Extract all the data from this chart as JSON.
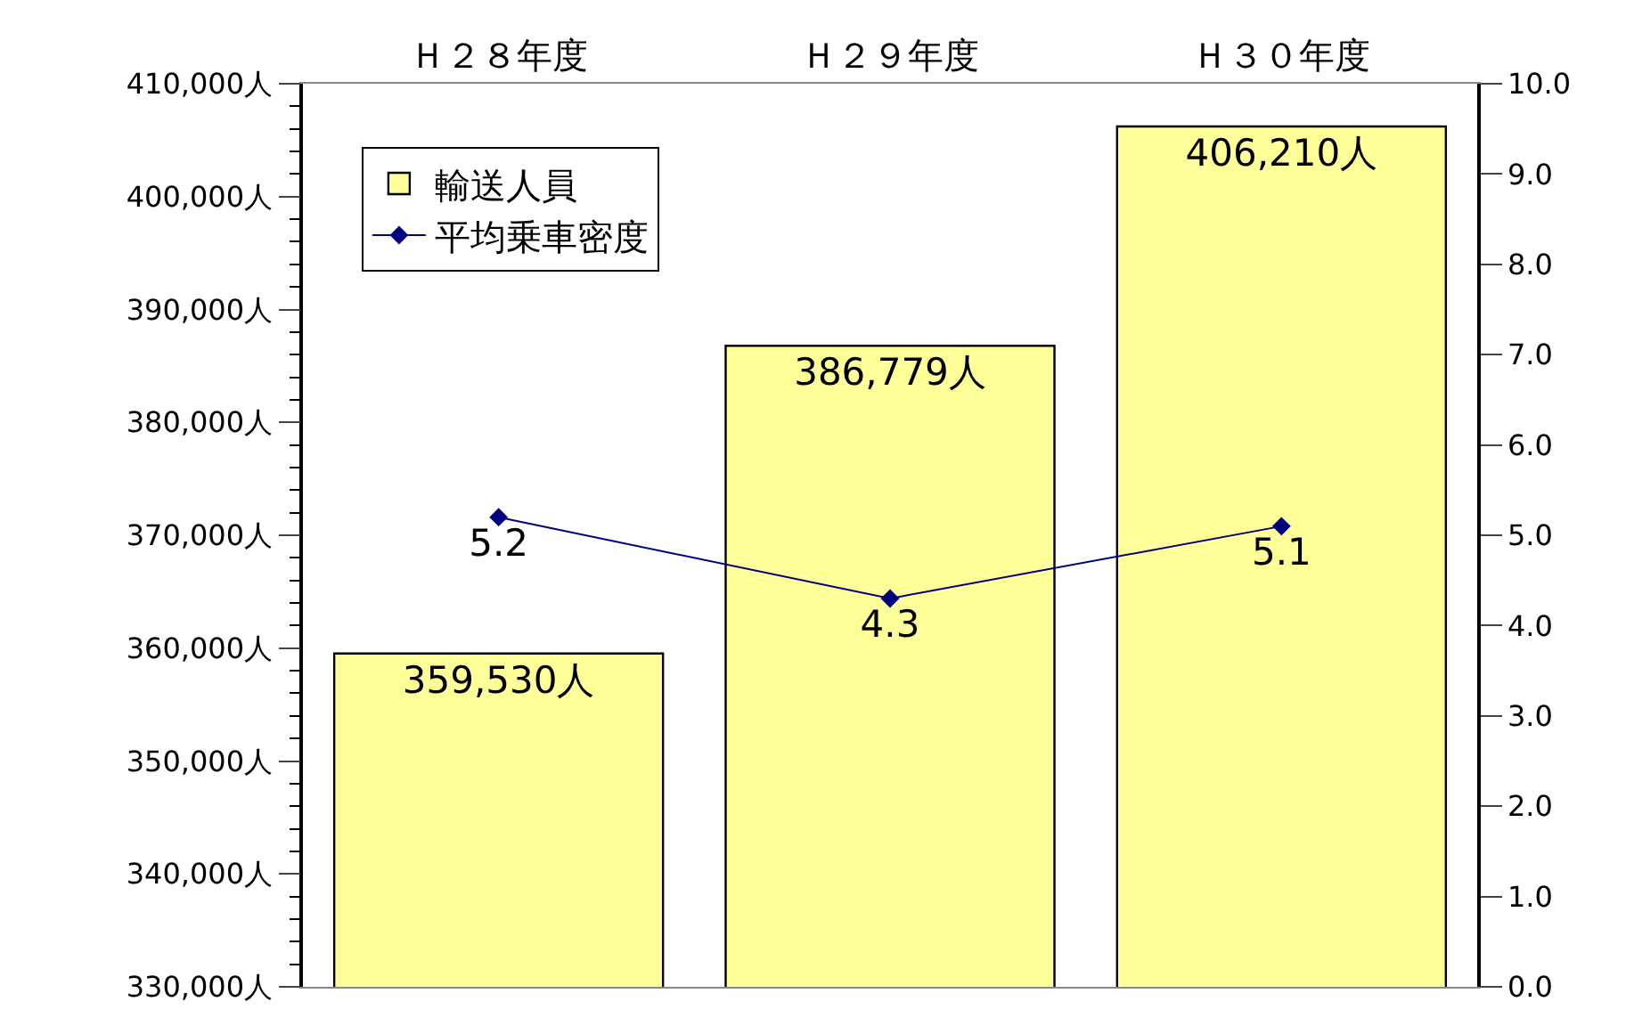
{
  "chart_data": {
    "type": "bar",
    "categories": [
      "Ｈ２８年度",
      "Ｈ２９年度",
      "Ｈ３０年度"
    ],
    "series": [
      {
        "name": "輸送人員",
        "color": "#ffff99",
        "values": [
          359530,
          386779,
          406210
        ],
        "value_labels": [
          "359,530人",
          "386,779人",
          "406,210人"
        ]
      },
      {
        "name": "平均乗車密度",
        "type": "line",
        "axis": "y2",
        "color": "#000080",
        "marker": "diamond",
        "values": [
          5.2,
          4.3,
          5.1
        ],
        "value_labels": [
          "5.2",
          "4.3",
          "5.1"
        ]
      }
    ],
    "ylim": [
      330000,
      410000
    ],
    "yticks": [
      {
        "value": 330000,
        "label": "330,000人"
      },
      {
        "value": 340000,
        "label": "340,000人"
      },
      {
        "value": 350000,
        "label": "350,000人"
      },
      {
        "value": 360000,
        "label": "360,000人"
      },
      {
        "value": 370000,
        "label": "370,000人"
      },
      {
        "value": 380000,
        "label": "380,000人"
      },
      {
        "value": 390000,
        "label": "390,000人"
      },
      {
        "value": 400000,
        "label": "400,000人"
      },
      {
        "value": 410000,
        "label": "410,000人"
      }
    ],
    "y2lim": [
      0,
      10
    ],
    "y2ticks": [
      {
        "value": 0,
        "label": "0.0"
      },
      {
        "value": 1,
        "label": "1.0"
      },
      {
        "value": 2,
        "label": "2.0"
      },
      {
        "value": 3,
        "label": "3.0"
      },
      {
        "value": 4,
        "label": "4.0"
      },
      {
        "value": 5,
        "label": "5.0"
      },
      {
        "value": 6,
        "label": "6.0"
      },
      {
        "value": 7,
        "label": "7.0"
      },
      {
        "value": 8,
        "label": "8.0"
      },
      {
        "value": 9,
        "label": "9.0"
      },
      {
        "value": 10,
        "label": "10.0"
      }
    ],
    "legend": "top left"
  }
}
